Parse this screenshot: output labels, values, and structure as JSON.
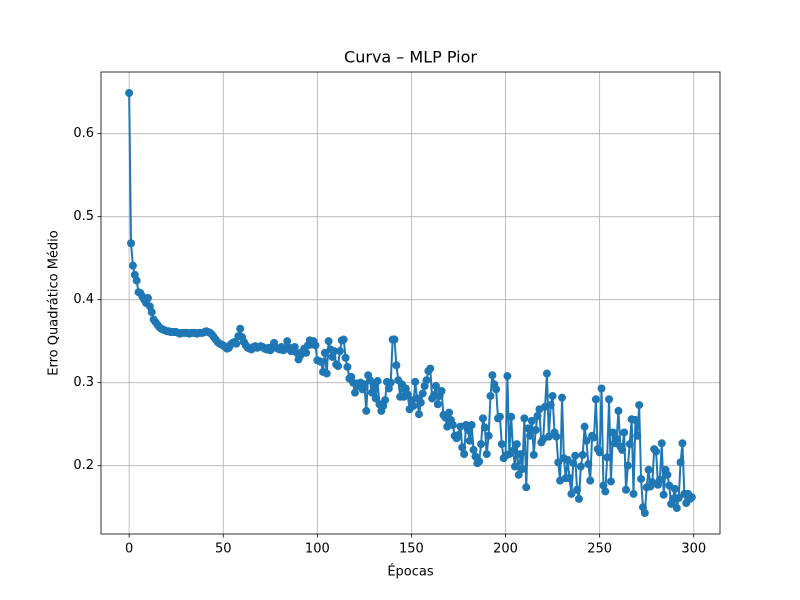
{
  "chart_data": {
    "type": "line",
    "title": "Curva – MLP Pior",
    "xlabel": "Épocas",
    "ylabel": "Erro Quadrático Médio",
    "x": [
      0,
      1,
      2,
      3,
      4,
      5,
      6,
      7,
      8,
      9,
      10,
      11,
      12,
      13,
      14,
      15,
      16,
      17,
      18,
      19,
      20,
      21,
      22,
      23,
      24,
      25,
      26,
      27,
      28,
      29,
      30,
      31,
      32,
      33,
      34,
      35,
      36,
      37,
      38,
      39,
      40,
      41,
      42,
      43,
      44,
      45,
      46,
      47,
      48,
      49,
      50,
      51,
      52,
      53,
      54,
      55,
      56,
      57,
      58,
      59,
      60,
      61,
      62,
      63,
      64,
      65,
      66,
      67,
      68,
      69,
      70,
      71,
      72,
      73,
      74,
      75,
      76,
      77,
      78,
      79,
      80,
      81,
      82,
      83,
      84,
      85,
      86,
      87,
      88,
      89,
      90,
      91,
      92,
      93,
      94,
      95,
      96,
      97,
      98,
      99,
      100,
      101,
      102,
      103,
      104,
      105,
      106,
      107,
      108,
      109,
      110,
      111,
      112,
      113,
      114,
      115,
      116,
      117,
      118,
      119,
      120,
      121,
      122,
      123,
      124,
      125,
      126,
      127,
      128,
      129,
      130,
      131,
      132,
      133,
      134,
      135,
      136,
      137,
      138,
      139,
      140,
      141,
      142,
      143,
      144,
      145,
      146,
      147,
      148,
      149,
      150,
      151,
      152,
      153,
      154,
      155,
      156,
      157,
      158,
      159,
      160,
      161,
      162,
      163,
      164,
      165,
      166,
      167,
      168,
      169,
      170,
      171,
      172,
      173,
      174,
      175,
      176,
      177,
      178,
      179,
      180,
      181,
      182,
      183,
      184,
      185,
      186,
      187,
      188,
      189,
      190,
      191,
      192,
      193,
      194,
      195,
      196,
      197,
      198,
      199,
      200,
      201,
      202,
      203,
      204,
      205,
      206,
      207,
      208,
      209,
      210,
      211,
      212,
      213,
      214,
      215,
      216,
      217,
      218,
      219,
      220,
      221,
      222,
      223,
      224,
      225,
      226,
      227,
      228,
      229,
      230,
      231,
      232,
      233,
      234,
      235,
      236,
      237,
      238,
      239,
      240,
      241,
      242,
      243,
      244,
      245,
      246,
      247,
      248,
      249,
      250,
      251,
      252,
      253,
      254,
      255,
      256,
      257,
      258,
      259,
      260,
      261,
      262,
      263,
      264,
      265,
      266,
      267,
      268,
      269,
      270,
      271,
      272,
      273,
      274,
      275,
      276,
      277,
      278,
      279,
      280,
      281,
      282,
      283,
      284,
      285,
      286,
      287,
      288,
      289,
      290,
      291,
      292,
      293,
      294,
      295,
      296,
      297,
      298,
      299
    ],
    "series": [
      {
        "color": "#1f77b4",
        "values": [
          0.649,
          0.468,
          0.441,
          0.43,
          0.423,
          0.409,
          0.408,
          0.404,
          0.4,
          0.396,
          0.402,
          0.392,
          0.385,
          0.376,
          0.373,
          0.37,
          0.367,
          0.365,
          0.364,
          0.363,
          0.362,
          0.362,
          0.361,
          0.361,
          0.361,
          0.361,
          0.36,
          0.359,
          0.36,
          0.36,
          0.36,
          0.36,
          0.359,
          0.36,
          0.36,
          0.36,
          0.359,
          0.36,
          0.36,
          0.36,
          0.361,
          0.362,
          0.361,
          0.36,
          0.358,
          0.355,
          0.352,
          0.349,
          0.347,
          0.346,
          0.345,
          0.343,
          0.341,
          0.342,
          0.346,
          0.348,
          0.349,
          0.347,
          0.356,
          0.365,
          0.355,
          0.349,
          0.345,
          0.342,
          0.341,
          0.34,
          0.343,
          0.344,
          0.342,
          0.343,
          0.344,
          0.343,
          0.341,
          0.34,
          0.342,
          0.339,
          0.343,
          0.348,
          0.342,
          0.341,
          0.34,
          0.343,
          0.339,
          0.341,
          0.35,
          0.342,
          0.338,
          0.342,
          0.343,
          0.336,
          0.328,
          0.333,
          0.337,
          0.341,
          0.336,
          0.345,
          0.351,
          0.346,
          0.35,
          0.345,
          0.327,
          0.326,
          0.325,
          0.313,
          0.336,
          0.311,
          0.35,
          0.34,
          0.331,
          0.338,
          0.322,
          0.32,
          0.338,
          0.351,
          0.352,
          0.33,
          0.319,
          0.305,
          0.307,
          0.3,
          0.288,
          0.299,
          0.296,
          0.3,
          0.292,
          0.298,
          0.266,
          0.309,
          0.303,
          0.288,
          0.296,
          0.281,
          0.302,
          0.274,
          0.266,
          0.272,
          0.279,
          0.301,
          0.293,
          0.3,
          0.352,
          0.352,
          0.321,
          0.303,
          0.283,
          0.298,
          0.283,
          0.293,
          0.286,
          0.268,
          0.279,
          0.272,
          0.301,
          0.281,
          0.262,
          0.276,
          0.287,
          0.296,
          0.303,
          0.314,
          0.317,
          0.281,
          0.285,
          0.296,
          0.274,
          0.284,
          0.29,
          0.261,
          0.258,
          0.247,
          0.264,
          0.255,
          0.249,
          0.236,
          0.233,
          0.237,
          0.247,
          0.222,
          0.214,
          0.249,
          0.243,
          0.23,
          0.249,
          0.219,
          0.211,
          0.203,
          0.205,
          0.226,
          0.257,
          0.246,
          0.214,
          0.236,
          0.284,
          0.309,
          0.298,
          0.292,
          0.257,
          0.259,
          0.226,
          0.209,
          0.212,
          0.308,
          0.214,
          0.259,
          0.218,
          0.199,
          0.226,
          0.189,
          0.214,
          0.196,
          0.257,
          0.174,
          0.245,
          0.236,
          0.254,
          0.213,
          0.243,
          0.26,
          0.268,
          0.228,
          0.232,
          0.271,
          0.311,
          0.235,
          0.273,
          0.284,
          0.24,
          0.235,
          0.204,
          0.182,
          0.282,
          0.209,
          0.185,
          0.207,
          0.185,
          0.166,
          0.203,
          0.212,
          0.171,
          0.16,
          0.199,
          0.213,
          0.247,
          0.23,
          0.202,
          0.182,
          0.236,
          0.234,
          0.28,
          0.22,
          0.216,
          0.293,
          0.176,
          0.169,
          0.21,
          0.28,
          0.181,
          0.24,
          0.227,
          0.232,
          0.266,
          0.223,
          0.219,
          0.24,
          0.171,
          0.2,
          0.226,
          0.256,
          0.166,
          0.255,
          0.236,
          0.273,
          0.184,
          0.15,
          0.143,
          0.174,
          0.195,
          0.175,
          0.18,
          0.22,
          0.217,
          0.177,
          0.183,
          0.227,
          0.165,
          0.195,
          0.189,
          0.176,
          0.154,
          0.16,
          0.172,
          0.149,
          0.161,
          0.204,
          0.227,
          0.166,
          0.155,
          0.166,
          0.16,
          0.162
        ]
      }
    ],
    "xlim": [
      -14.95,
      313.95
    ],
    "xticks": [
      0,
      50,
      100,
      150,
      200,
      250,
      300
    ],
    "ylim": [
      0.1177,
      0.6743
    ],
    "yticks": [
      0.2,
      0.3,
      0.4,
      0.5,
      0.6
    ],
    "grid": true
  }
}
